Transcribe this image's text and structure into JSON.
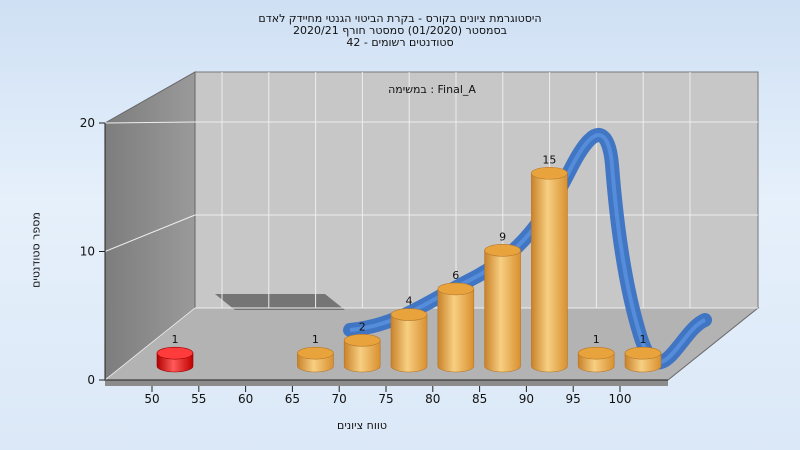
{
  "title": {
    "line1": "היסטוגרמת ציונים בקורס - בקרת הביטוי הגנטי מחיידק לאדם",
    "line2": "בסמסטר   (01/2020)   סמסטר חורף  2020/21",
    "line3": "סטודנטים רשומים - 42"
  },
  "colors": {
    "bar": "#e8a33c",
    "bar_highlight": "#f7cf82",
    "failing_bar": "#e01010",
    "curve": "#3a72c4",
    "back_wall": "#c7c7c7",
    "side_wall": "#8a8a8a",
    "floor": "#b3b3b3"
  },
  "chart_data": {
    "type": "bar",
    "subtitle": "במשימה : Final_A",
    "xlabel": "טווח ציונים",
    "ylabel": "מספר סטודנטים",
    "ylim": [
      0,
      20
    ],
    "yticks": [
      0,
      10,
      20
    ],
    "xticks": [
      "50",
      "55",
      "60",
      "65",
      "70",
      "75",
      "80",
      "85",
      "90",
      "95",
      "100"
    ],
    "bars": [
      {
        "label": "1",
        "value": 1,
        "slot": 0,
        "failing": true
      },
      {
        "label": "1",
        "value": 1,
        "slot": 3
      },
      {
        "label": "2",
        "value": 2,
        "slot": 4
      },
      {
        "label": "4",
        "value": 4,
        "slot": 5
      },
      {
        "label": "6",
        "value": 6,
        "slot": 6
      },
      {
        "label": "9",
        "value": 9,
        "slot": 7
      },
      {
        "label": "15",
        "value": 15,
        "slot": 8
      },
      {
        "label": "1",
        "value": 1,
        "slot": 9
      },
      {
        "label": "1",
        "value": 1,
        "slot": 10
      }
    ],
    "grid": true,
    "view": "3d"
  }
}
